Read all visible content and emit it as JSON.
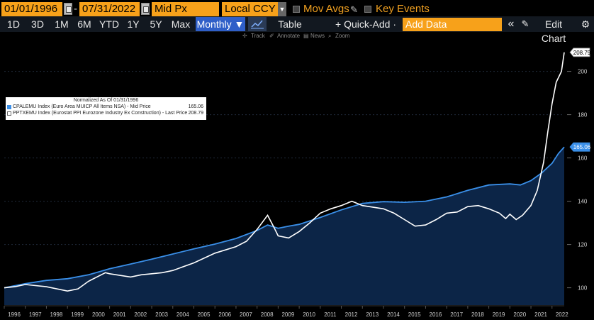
{
  "toolbar": {
    "start_date": "01/01/1996",
    "end_date": "07/31/2022",
    "date_separator": "-",
    "price_field": "Mid Px",
    "currency": "Local CCY",
    "mov_avgs_label": "Mov Avgs",
    "key_events_label": "Key Events"
  },
  "periods": [
    "1D",
    "3D",
    "1M",
    "6M",
    "YTD",
    "1Y",
    "5Y",
    "Max"
  ],
  "frequency": "Monthly ▼",
  "table_label": "Table",
  "quick_add_label": "+ Quick-Add ·",
  "add_data_placeholder": "Add Data",
  "collapse_label": "«",
  "edit_chart_label": "Edit Chart",
  "mini_tools": [
    "Track",
    "Annotate",
    "News",
    "Zoom"
  ],
  "legend": {
    "title": "Normalized As Of 01/31/1996",
    "series": [
      {
        "label": "CPALEMU Index (Euro Area MUICP All Items NSA) - Mid Price",
        "value": "165.06",
        "color": "#3a8fe8"
      },
      {
        "label": "PPTXEMU Index (Eurostat PPI Eurozone Industry Ex Construction) - Last Price",
        "value": "208.79",
        "color": "#ffffff"
      }
    ]
  },
  "chart_data": {
    "type": "line",
    "title": "Normalized As Of 01/31/1996",
    "x": [
      1996,
      1997,
      1998,
      1999,
      2000,
      2001,
      2002,
      2003,
      2004,
      2005,
      2006,
      2007,
      2008,
      2009,
      2010,
      2011,
      2012,
      2013,
      2014,
      2015,
      2016,
      2017,
      2018,
      2019,
      2020,
      2021,
      2022
    ],
    "x_end": 2022.58,
    "ylim": [
      92,
      212
    ],
    "yticks": [
      100,
      120,
      140,
      160,
      180,
      200
    ],
    "xtick_labels": [
      "1996",
      "1997",
      "1998",
      "1999",
      "2000",
      "2001",
      "2002",
      "2003",
      "2004",
      "2005",
      "2006",
      "2007",
      "2008",
      "2009",
      "2010",
      "2011",
      "2012",
      "2013",
      "2014",
      "2015",
      "2016",
      "2017",
      "2018",
      "2019",
      "2020",
      "2021",
      "2022"
    ],
    "series": [
      {
        "name": "CPALEMU Index (Euro Area MUICP All Items NSA) - Mid Price",
        "color": "#3a8fe8",
        "last_value": 165.06,
        "points": [
          [
            1996.0,
            100.0
          ],
          [
            1997.0,
            101.9
          ],
          [
            1998.0,
            103.4
          ],
          [
            1999.0,
            104.2
          ],
          [
            2000.0,
            106.0
          ],
          [
            2001.0,
            108.8
          ],
          [
            2002.0,
            111.0
          ],
          [
            2003.0,
            113.2
          ],
          [
            2004.0,
            115.6
          ],
          [
            2005.0,
            118.0
          ],
          [
            2006.0,
            120.2
          ],
          [
            2007.0,
            122.8
          ],
          [
            2008.0,
            126.5
          ],
          [
            2008.5,
            129.0
          ],
          [
            2009.0,
            127.5
          ],
          [
            2009.5,
            128.5
          ],
          [
            2010.0,
            129.3
          ],
          [
            2011.0,
            132.5
          ],
          [
            2012.0,
            136.0
          ],
          [
            2013.0,
            139.0
          ],
          [
            2014.0,
            139.8
          ],
          [
            2015.0,
            139.5
          ],
          [
            2016.0,
            140.0
          ],
          [
            2017.0,
            142.0
          ],
          [
            2018.0,
            145.0
          ],
          [
            2019.0,
            147.5
          ],
          [
            2020.0,
            148.0
          ],
          [
            2020.5,
            147.5
          ],
          [
            2021.0,
            149.5
          ],
          [
            2021.5,
            153.0
          ],
          [
            2022.0,
            157.5
          ],
          [
            2022.3,
            162.0
          ],
          [
            2022.58,
            165.06
          ]
        ]
      },
      {
        "name": "PPTXEMU Index (Eurostat PPI Eurozone Industry Ex Construction) - Last Price",
        "color": "#ffffff",
        "last_value": 208.79,
        "points": [
          [
            1996.0,
            100.0
          ],
          [
            1996.5,
            100.5
          ],
          [
            1997.0,
            101.5
          ],
          [
            1998.0,
            100.5
          ],
          [
            1999.0,
            98.5
          ],
          [
            1999.5,
            99.5
          ],
          [
            2000.0,
            103.0
          ],
          [
            2000.8,
            107.0
          ],
          [
            2001.0,
            106.5
          ],
          [
            2002.0,
            105.0
          ],
          [
            2002.5,
            106.0
          ],
          [
            2003.0,
            106.5
          ],
          [
            2003.5,
            107.0
          ],
          [
            2004.0,
            108.0
          ],
          [
            2005.0,
            111.5
          ],
          [
            2006.0,
            116.0
          ],
          [
            2007.0,
            119.0
          ],
          [
            2007.5,
            121.5
          ],
          [
            2008.0,
            127.0
          ],
          [
            2008.5,
            133.5
          ],
          [
            2008.8,
            128.0
          ],
          [
            2009.0,
            124.0
          ],
          [
            2009.5,
            123.0
          ],
          [
            2010.0,
            126.0
          ],
          [
            2010.5,
            130.0
          ],
          [
            2011.0,
            134.5
          ],
          [
            2011.5,
            136.5
          ],
          [
            2012.0,
            138.0
          ],
          [
            2012.5,
            140.0
          ],
          [
            2013.0,
            138.0
          ],
          [
            2014.0,
            136.5
          ],
          [
            2014.5,
            134.5
          ],
          [
            2015.0,
            131.5
          ],
          [
            2015.5,
            128.5
          ],
          [
            2016.0,
            129.0
          ],
          [
            2016.5,
            131.5
          ],
          [
            2017.0,
            134.5
          ],
          [
            2017.5,
            135.0
          ],
          [
            2018.0,
            137.5
          ],
          [
            2018.5,
            138.0
          ],
          [
            2019.0,
            136.5
          ],
          [
            2019.5,
            134.5
          ],
          [
            2019.8,
            132.0
          ],
          [
            2020.0,
            134.0
          ],
          [
            2020.3,
            131.5
          ],
          [
            2020.6,
            133.5
          ],
          [
            2021.0,
            138.0
          ],
          [
            2021.3,
            145.0
          ],
          [
            2021.6,
            158.0
          ],
          [
            2021.8,
            172.0
          ],
          [
            2022.0,
            185.0
          ],
          [
            2022.2,
            195.0
          ],
          [
            2022.45,
            200.0
          ],
          [
            2022.58,
            208.79
          ]
        ]
      }
    ]
  }
}
